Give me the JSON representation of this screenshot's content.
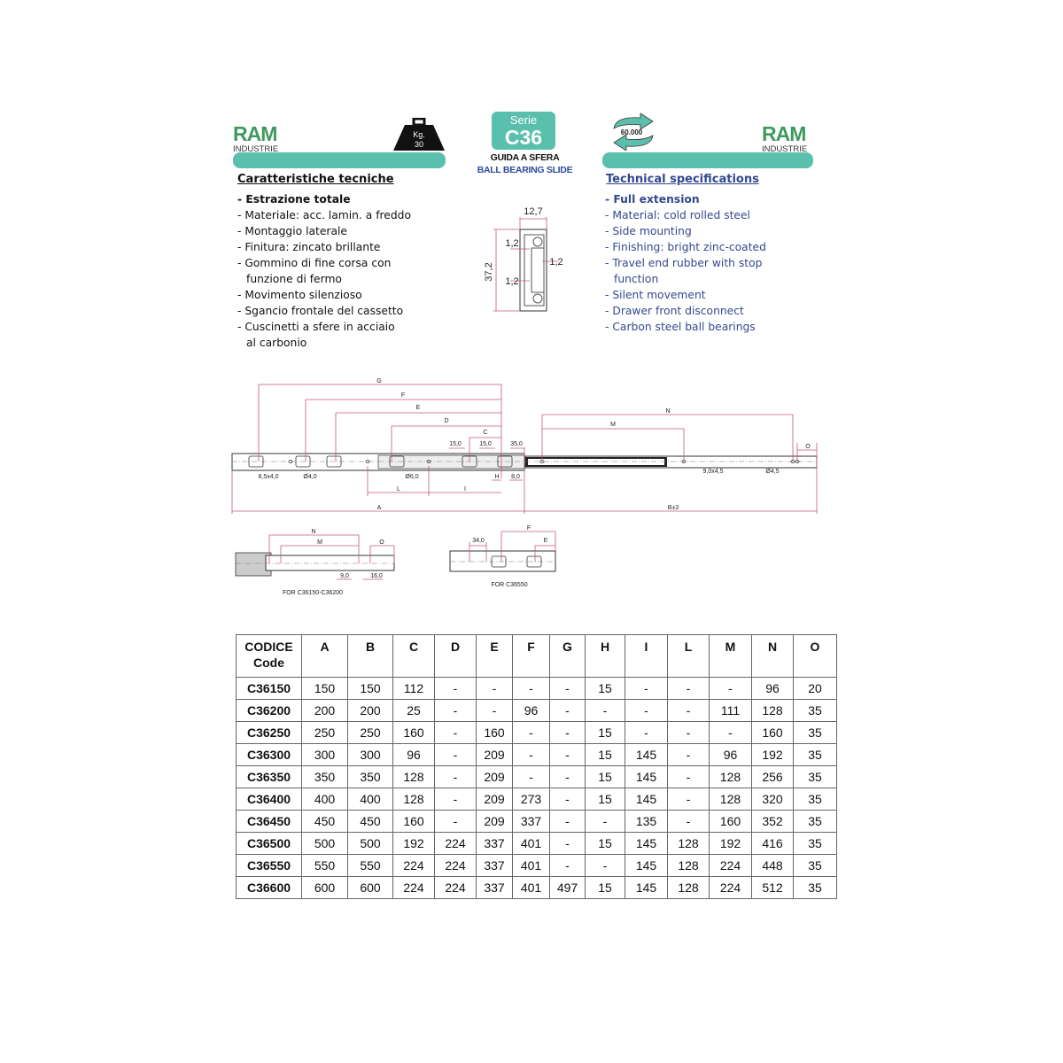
{
  "header": {
    "brand": "RAM",
    "brand_sub": "INDUSTRIE",
    "load": "Kg.",
    "load_value": "30",
    "series_label": "Serie",
    "series": "C36",
    "title_it": "GUIDA A SFERA",
    "title_en": "BALL BEARING SLIDE",
    "cycles": "60.000",
    "accent": "#5bbfae",
    "brand_color": "#3f9a5c"
  },
  "left": {
    "heading": "Caratteristiche tecniche",
    "items": [
      "- Estrazione totale",
      "- Materiale: acc. lamin. a freddo",
      "- Montaggio laterale",
      "- Finitura: zincato brillante",
      "- Gommino di fine corsa con funzione di fermo",
      "- Movimento silenzioso",
      "- Sgancio frontale del cassetto",
      "- Cuscinetti a sfere in acciaio al carbonio"
    ]
  },
  "right": {
    "heading": "Technical specifications",
    "items": [
      "- Full extension",
      "- Material: cold rolled steel",
      "- Side mounting",
      "- Finishing: bright zinc-coated",
      "- Travel end rubber with stop function",
      "- Silent movement",
      "- Drawer front disconnect",
      "- Carbon steel ball bearings"
    ]
  },
  "section": {
    "width": "12,7",
    "height": "37,2",
    "t1": "1,2",
    "t2": "1,2",
    "t3": "1,2"
  },
  "drawing": {
    "G": "G",
    "F": "F",
    "E": "E",
    "D": "D",
    "C": "C",
    "N": "N",
    "M": "M",
    "O": "O",
    "A": "A",
    "B": "B±3",
    "L": "L",
    "I": "I",
    "H": "H",
    "d15a": "15,0",
    "d15b": "15,0",
    "d35": "35,0",
    "d8": "8,0",
    "slot": "8,5x4,0",
    "h4": "Ø4,0",
    "h6": "Ø6,0",
    "slot2": "9,0x4,5",
    "h45": "Ø4,5",
    "sub1": {
      "N": "N",
      "M": "M",
      "O": "O",
      "d9": "9,0",
      "d16": "16,0",
      "caption": "FOR C36150-C36200"
    },
    "sub2": {
      "F": "F",
      "E": "E",
      "d34": "34,0",
      "caption": "FOR C36550"
    }
  },
  "table": {
    "headers": [
      "CODICE\nCode",
      "A",
      "B",
      "C",
      "D",
      "E",
      "F",
      "G",
      "H",
      "I",
      "L",
      "M",
      "N",
      "O"
    ],
    "rows": [
      [
        "C36150",
        "150",
        "150",
        "112",
        "-",
        "-",
        "-",
        "-",
        "15",
        "-",
        "-",
        "-",
        "96",
        "20"
      ],
      [
        "C36200",
        "200",
        "200",
        "25",
        "-",
        "-",
        "96",
        "-",
        "-",
        "-",
        "-",
        "111",
        "128",
        "35"
      ],
      [
        "C36250",
        "250",
        "250",
        "160",
        "-",
        "160",
        "-",
        "-",
        "15",
        "-",
        "-",
        "-",
        "160",
        "35"
      ],
      [
        "C36300",
        "300",
        "300",
        "96",
        "-",
        "209",
        "-",
        "-",
        "15",
        "145",
        "-",
        "96",
        "192",
        "35"
      ],
      [
        "C36350",
        "350",
        "350",
        "128",
        "-",
        "209",
        "-",
        "-",
        "15",
        "145",
        "-",
        "128",
        "256",
        "35"
      ],
      [
        "C36400",
        "400",
        "400",
        "128",
        "-",
        "209",
        "273",
        "-",
        "15",
        "145",
        "-",
        "128",
        "320",
        "35"
      ],
      [
        "C36450",
        "450",
        "450",
        "160",
        "-",
        "209",
        "337",
        "-",
        "-",
        "135",
        "-",
        "160",
        "352",
        "35"
      ],
      [
        "C36500",
        "500",
        "500",
        "192",
        "224",
        "337",
        "401",
        "-",
        "15",
        "145",
        "128",
        "192",
        "416",
        "35"
      ],
      [
        "C36550",
        "550",
        "550",
        "224",
        "224",
        "337",
        "401",
        "-",
        "-",
        "145",
        "128",
        "224",
        "448",
        "35"
      ],
      [
        "C36600",
        "600",
        "600",
        "224",
        "224",
        "337",
        "401",
        "497",
        "15",
        "145",
        "128",
        "224",
        "512",
        "35"
      ]
    ]
  }
}
